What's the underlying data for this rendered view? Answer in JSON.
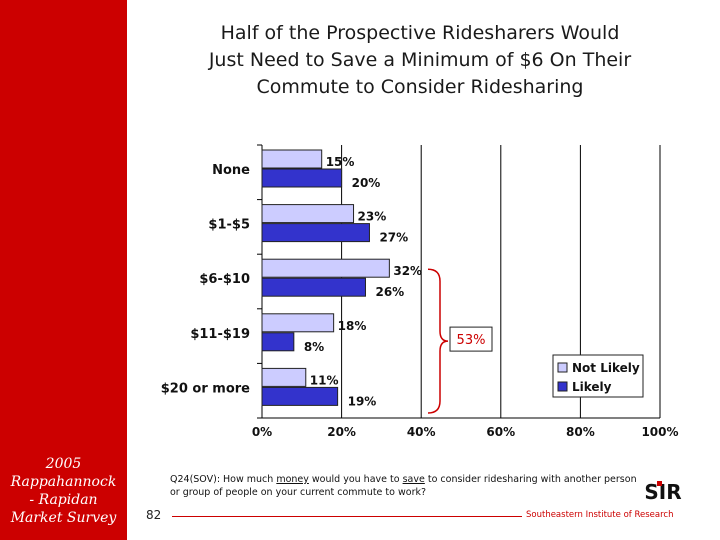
{
  "sidebar": {
    "survey_label_lines": [
      "2005",
      "Rappahannock",
      "- Rapidan",
      "Market Survey"
    ]
  },
  "title_lines": [
    "Half of the Prospective Ridesharers Would",
    "Just Need to Save a Minimum of $6 On Their",
    "Commute to Consider Ridesharing"
  ],
  "chart_data": {
    "type": "bar",
    "orientation": "horizontal",
    "categories": [
      "None",
      "$1-$5",
      "$6-$10",
      "$11-$19",
      "$20 or more"
    ],
    "series": [
      {
        "name": "Not Likely",
        "values": [
          15,
          23,
          32,
          18,
          11
        ],
        "labels": [
          "15%",
          "23%",
          "32%",
          "18%",
          "11%"
        ],
        "color": "#ccccff"
      },
      {
        "name": "Likely",
        "values": [
          20,
          27,
          26,
          8,
          19
        ],
        "labels": [
          "20%",
          "27%",
          "26%",
          "8%",
          "19%"
        ],
        "color": "#3333cc"
      }
    ],
    "xlim": [
      0,
      100
    ],
    "x_ticks": [
      0,
      20,
      40,
      60,
      80,
      100
    ],
    "x_tick_labels": [
      "0%",
      "20%",
      "40%",
      "60%",
      "80%",
      "100%"
    ],
    "grid": true,
    "legend": {
      "position": "right",
      "entries": [
        "Not Likely",
        "Likely"
      ]
    },
    "annotation": {
      "text": "53%",
      "spans_categories": [
        "$6-$10",
        "$11-$19",
        "$20 or more"
      ],
      "color": "#cc0000"
    }
  },
  "footnote": {
    "prefix": "Q24(SOV): How much ",
    "underline1": "money",
    "middle": " would you have to ",
    "underline2": "save",
    "suffix": " to consider ridesharing with another person or group of people on your current commute to work?"
  },
  "footer": {
    "page_number": "82",
    "organization": "Southeastern Institute of Research",
    "logo_text": "SIR"
  },
  "colors": {
    "brand_red": "#cc0000",
    "not_likely": "#ccccff",
    "likely": "#3333cc"
  }
}
